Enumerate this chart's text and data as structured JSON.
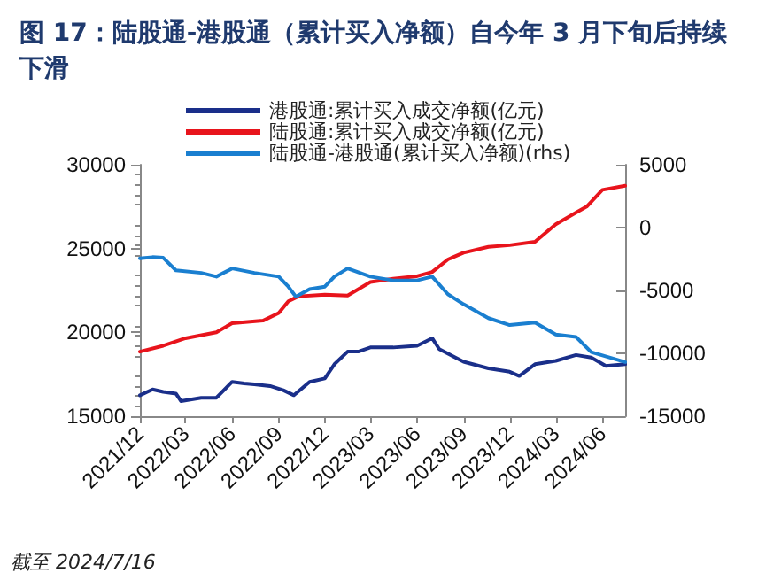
{
  "chart_data": {
    "type": "line",
    "title": "图 17：陆股通-港股通（累计买入净额）自今年 3 月下旬后持续下滑",
    "annotations": [
      "截至 2024/7/16"
    ],
    "xlim": [
      "2021-12-01",
      "2024-07-16"
    ],
    "xticks": [
      {
        "value": "2021-12",
        "label": "2021/12"
      },
      {
        "value": "2022-03",
        "label": "2022/03"
      },
      {
        "value": "2022-06",
        "label": "2022/06"
      },
      {
        "value": "2022-09",
        "label": "2022/09"
      },
      {
        "value": "2022-12",
        "label": "2022/12"
      },
      {
        "value": "2023-03",
        "label": "2023/03"
      },
      {
        "value": "2023-06",
        "label": "2023/06"
      },
      {
        "value": "2023-09",
        "label": "2023/09"
      },
      {
        "value": "2023-12",
        "label": "2023/12"
      },
      {
        "value": "2024-03",
        "label": "2024/03"
      },
      {
        "value": "2024-06",
        "label": "2024/06"
      }
    ],
    "ylim": [
      15000,
      30000
    ],
    "yticks": [
      15000,
      20000,
      25000,
      30000
    ],
    "y2lim": [
      -15000,
      5000
    ],
    "y2ticks": [
      -15000,
      -10000,
      -5000,
      0,
      5000
    ],
    "grid": false,
    "legend": "top",
    "marker": "none",
    "line_style": "solid",
    "series": [
      {
        "name": "港股通:累计买入成交净额(亿元)",
        "color": "#1a2f8a",
        "x": [
          "2021-12-01",
          "2021-12-26",
          "2022-01-16",
          "2022-02-10",
          "2022-02-20",
          "2022-04-01",
          "2022-05-01",
          "2022-06-01",
          "2022-06-25",
          "2022-07-15",
          "2022-08-15",
          "2022-09-10",
          "2022-10-01",
          "2022-11-01",
          "2022-12-01",
          "2022-12-20",
          "2023-01-15",
          "2023-02-05",
          "2023-03-01",
          "2023-04-15",
          "2023-06-01",
          "2023-07-01",
          "2023-07-15",
          "2023-09-01",
          "2023-10-20",
          "2023-12-01",
          "2023-12-20",
          "2024-01-20",
          "2024-03-01",
          "2024-04-10",
          "2024-05-10",
          "2024-06-08",
          "2024-07-16"
        ],
        "values": [
          16250,
          16600,
          16450,
          16350,
          15900,
          16100,
          16100,
          17050,
          16950,
          16900,
          16800,
          16550,
          16250,
          17050,
          17250,
          18100,
          18850,
          18850,
          19100,
          19100,
          19200,
          19650,
          19000,
          18250,
          17850,
          17650,
          17400,
          18100,
          18300,
          18650,
          18500,
          18000,
          18100
        ]
      },
      {
        "name": "陆股通:累计买入成交净额(亿元)",
        "color": "#e8141c",
        "x": [
          "2021-12-01",
          "2022-01-16",
          "2022-03-01",
          "2022-05-01",
          "2022-06-01",
          "2022-08-01",
          "2022-09-01",
          "2022-09-20",
          "2022-10-10",
          "2022-12-01",
          "2023-01-15",
          "2023-03-01",
          "2023-04-15",
          "2023-06-01",
          "2023-07-01",
          "2023-08-01",
          "2023-09-01",
          "2023-10-20",
          "2023-12-01",
          "2024-01-20",
          "2024-03-01",
          "2024-04-10",
          "2024-05-01",
          "2024-06-01",
          "2024-07-16"
        ],
        "values": [
          18850,
          19200,
          19650,
          20000,
          20550,
          20700,
          21150,
          21850,
          22150,
          22250,
          22200,
          23000,
          23200,
          23350,
          23600,
          24350,
          24750,
          25100,
          25200,
          25400,
          26450,
          27150,
          27500,
          28500,
          28750
        ]
      },
      {
        "name": "陆股通-港股通(累计买入净额)(rhs)",
        "color": "#1a7fd0",
        "axis": "y2",
        "x": [
          "2021-12-01",
          "2021-12-26",
          "2022-01-16",
          "2022-02-10",
          "2022-04-01",
          "2022-05-01",
          "2022-06-01",
          "2022-07-15",
          "2022-09-01",
          "2022-09-20",
          "2022-10-05",
          "2022-11-01",
          "2022-12-01",
          "2022-12-20",
          "2023-01-15",
          "2023-03-01",
          "2023-04-15",
          "2023-06-01",
          "2023-07-01",
          "2023-08-01",
          "2023-09-01",
          "2023-10-20",
          "2023-12-01",
          "2024-01-20",
          "2024-03-01",
          "2024-04-10",
          "2024-05-10",
          "2024-07-16"
        ],
        "values": [
          -2450,
          -2350,
          -2400,
          -3400,
          -3600,
          -3900,
          -3250,
          -3600,
          -3900,
          -4700,
          -5500,
          -4900,
          -4700,
          -3900,
          -3250,
          -3900,
          -4200,
          -4200,
          -3900,
          -5300,
          -6100,
          -7200,
          -7750,
          -7550,
          -8500,
          -8700,
          -9900,
          -10700
        ]
      }
    ]
  }
}
